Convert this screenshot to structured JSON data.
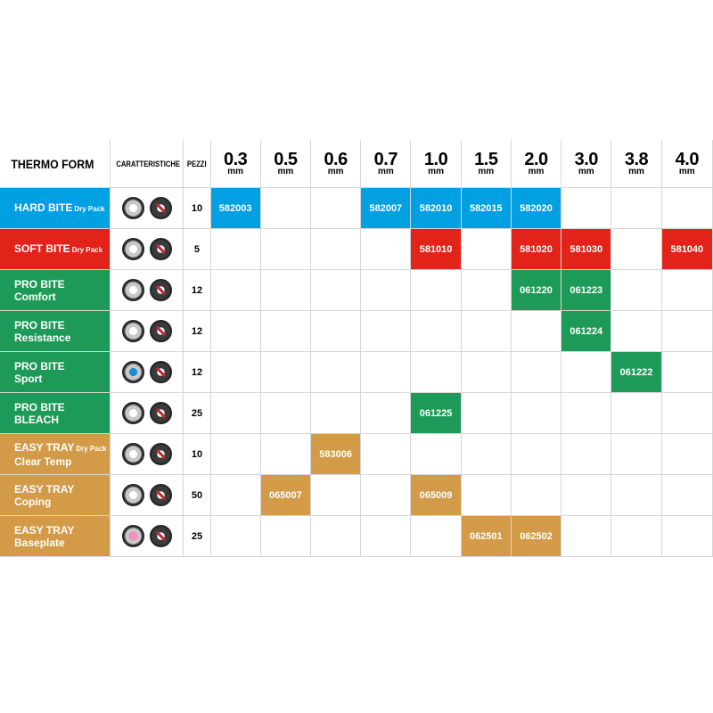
{
  "colors": {
    "hard_bite": "#00a0e3",
    "soft_bite": "#e2231a",
    "pro_bite": "#1d9a57",
    "easy_tray": "#d39a47"
  },
  "header": {
    "title": "THERMO FORM",
    "features": "CARATTERISTICHE",
    "pieces": "PEZZI",
    "unit": "mm",
    "sizes": [
      "0.3",
      "0.5",
      "0.6",
      "0.7",
      "1.0",
      "1.5",
      "2.0",
      "3.0",
      "3.8",
      "4.0"
    ]
  },
  "rows": [
    {
      "line1": "HARD BITE",
      "tag": "Dry Pack",
      "line2": "",
      "qty": "10",
      "color": "#00a0e3",
      "icon": "plain",
      "codes": [
        "582003",
        "",
        "",
        "582007",
        "582010",
        "582015",
        "582020",
        "",
        "",
        ""
      ]
    },
    {
      "line1": "SOFT BITE",
      "tag": "Dry Pack",
      "line2": "",
      "qty": "5",
      "color": "#e2231a",
      "icon": "plain",
      "codes": [
        "",
        "",
        "",
        "",
        "581010",
        "",
        "581020",
        "581030",
        "",
        "581040"
      ]
    },
    {
      "line1": "PRO BITE",
      "tag": "",
      "line2": "Comfort",
      "qty": "12",
      "color": "#1d9a57",
      "icon": "plain",
      "codes": [
        "",
        "",
        "",
        "",
        "",
        "",
        "061220",
        "061223",
        "",
        ""
      ]
    },
    {
      "line1": "PRO BITE",
      "tag": "",
      "line2": "Resistance",
      "qty": "12",
      "color": "#1d9a57",
      "icon": "plain",
      "codes": [
        "",
        "",
        "",
        "",
        "",
        "",
        "",
        "061224",
        "",
        ""
      ]
    },
    {
      "line1": "PRO BITE",
      "tag": "",
      "line2": "Sport",
      "qty": "12",
      "color": "#1d9a57",
      "icon": "blue",
      "codes": [
        "",
        "",
        "",
        "",
        "",
        "",
        "",
        "",
        "061222",
        ""
      ]
    },
    {
      "line1": "PRO BITE",
      "tag": "",
      "line2": "BLEACH",
      "qty": "25",
      "color": "#1d9a57",
      "icon": "plain",
      "codes": [
        "",
        "",
        "",
        "",
        "061225",
        "",
        "",
        "",
        "",
        ""
      ]
    },
    {
      "line1": "EASY TRAY",
      "tag": "Dry Pack",
      "line2": "Clear Temp",
      "qty": "10",
      "color": "#d39a47",
      "icon": "plain",
      "codes": [
        "",
        "",
        "583006",
        "",
        "",
        "",
        "",
        "",
        "",
        ""
      ]
    },
    {
      "line1": "EASY TRAY",
      "tag": "",
      "line2": "Coping",
      "qty": "50",
      "color": "#d39a47",
      "icon": "plain",
      "codes": [
        "",
        "065007",
        "",
        "",
        "065009",
        "",
        "",
        "",
        "",
        ""
      ]
    },
    {
      "line1": "EASY TRAY",
      "tag": "",
      "line2": "Baseplate",
      "qty": "25",
      "color": "#d39a47",
      "icon": "pink",
      "codes": [
        "",
        "",
        "",
        "",
        "",
        "062501",
        "062502",
        "",
        "",
        ""
      ]
    }
  ]
}
